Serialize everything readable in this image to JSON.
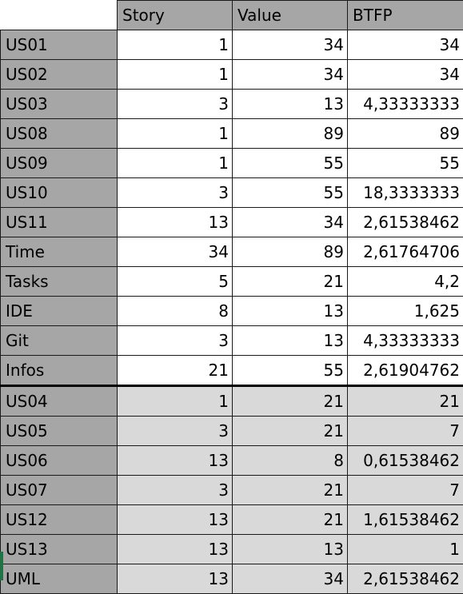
{
  "headers": [
    "",
    "Story",
    "Value",
    "BTFP"
  ],
  "group1": [
    {
      "name": "US01",
      "story": "1",
      "value": "34",
      "btfp": "34"
    },
    {
      "name": "US02",
      "story": "1",
      "value": "34",
      "btfp": "34"
    },
    {
      "name": "US03",
      "story": "3",
      "value": "13",
      "btfp": "4,33333333"
    },
    {
      "name": "US08",
      "story": "1",
      "value": "89",
      "btfp": "89"
    },
    {
      "name": "US09",
      "story": "1",
      "value": "55",
      "btfp": "55"
    },
    {
      "name": "US10",
      "story": "3",
      "value": "55",
      "btfp": "18,3333333"
    },
    {
      "name": "US11",
      "story": "13",
      "value": "34",
      "btfp": "2,61538462"
    },
    {
      "name": "Time",
      "story": "34",
      "value": "89",
      "btfp": "2,61764706"
    },
    {
      "name": "Tasks",
      "story": "5",
      "value": "21",
      "btfp": "4,2"
    },
    {
      "name": "IDE",
      "story": "8",
      "value": "13",
      "btfp": "1,625"
    },
    {
      "name": "Git",
      "story": "3",
      "value": "13",
      "btfp": "4,33333333"
    },
    {
      "name": "Infos",
      "story": "21",
      "value": "55",
      "btfp": "2,61904762"
    }
  ],
  "group2": [
    {
      "name": "US04",
      "story": "1",
      "value": "21",
      "btfp": "21"
    },
    {
      "name": "US05",
      "story": "3",
      "value": "21",
      "btfp": "7"
    },
    {
      "name": "US06",
      "story": "13",
      "value": "8",
      "btfp": "0,61538462"
    },
    {
      "name": "US07",
      "story": "3",
      "value": "21",
      "btfp": "7"
    },
    {
      "name": "US12",
      "story": "13",
      "value": "21",
      "btfp": "1,61538462"
    },
    {
      "name": "US13",
      "story": "13",
      "value": "13",
      "btfp": "1"
    },
    {
      "name": "UML",
      "story": "13",
      "value": "34",
      "btfp": "2,61538462"
    }
  ],
  "colors": {
    "header_fill": "#a6a6a6",
    "group2_fill": "#d9d9d9",
    "selection_accent": "#217346"
  }
}
